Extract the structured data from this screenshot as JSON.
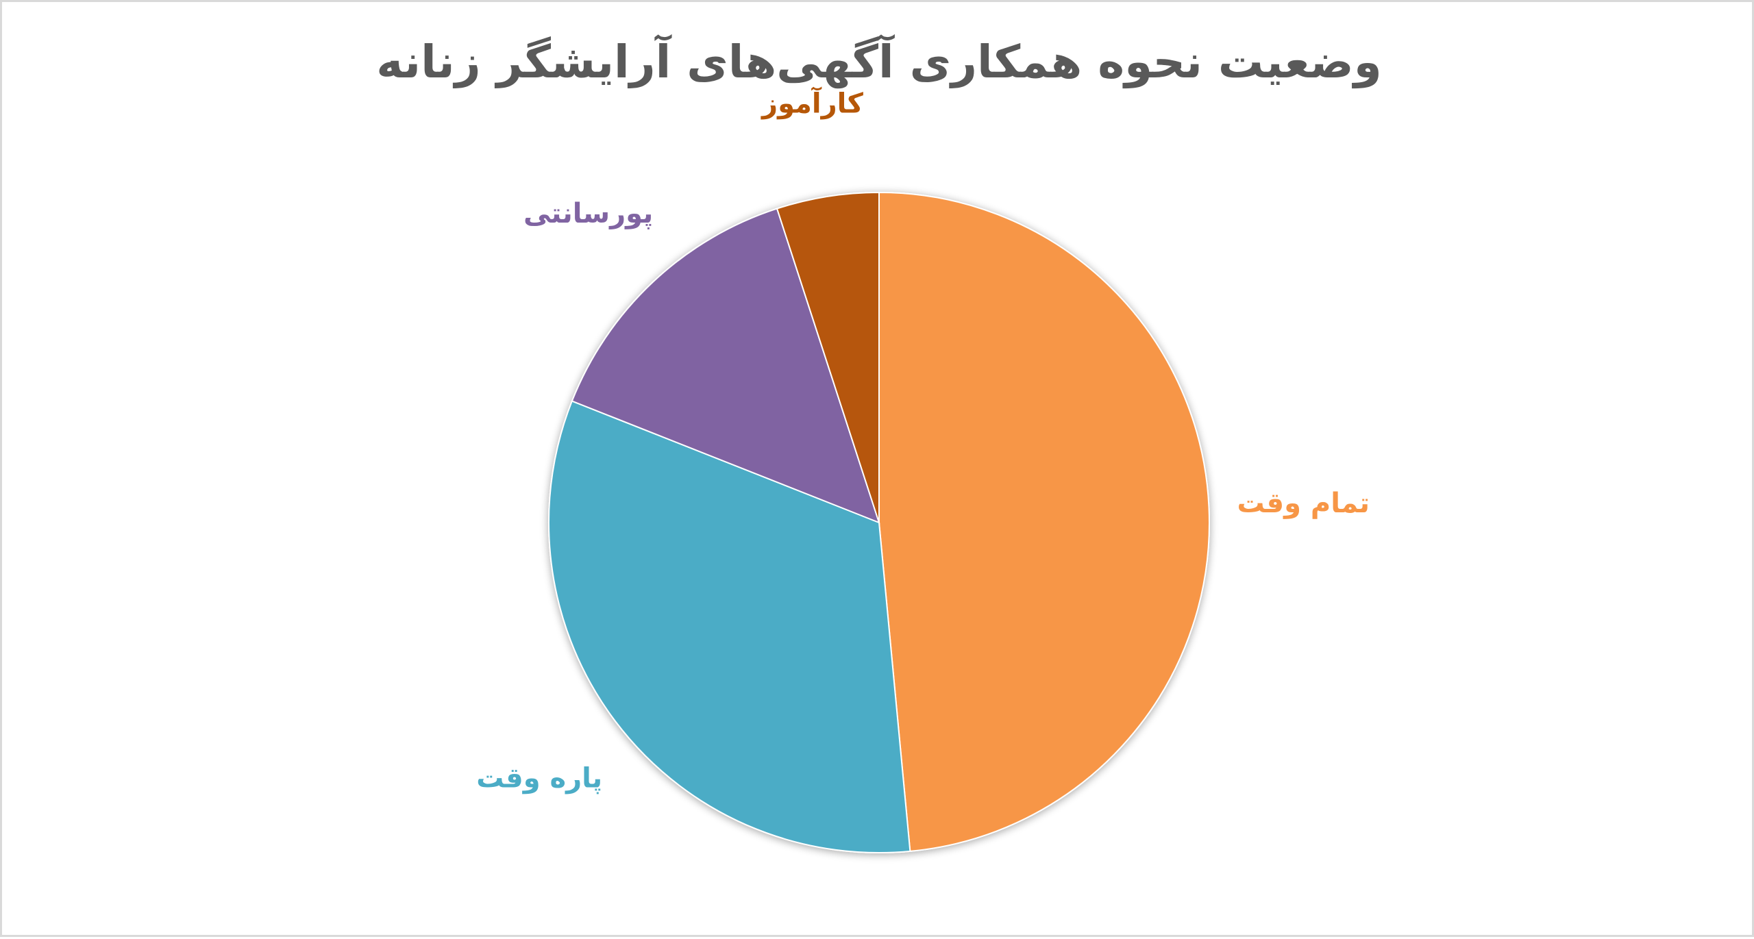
{
  "chart_data": {
    "type": "pie",
    "title": "وضعیت نحوه همکاری آگهی‌های آرایشگر زنانه",
    "start": "12 o'clock",
    "direction": "clockwise",
    "slices": [
      {
        "label": "تمام وقت",
        "value": 48.5,
        "color": "#F79646"
      },
      {
        "label": "پاره وقت",
        "value": 32.5,
        "color": "#4BACC6"
      },
      {
        "label": "پورسانتی",
        "value": 14,
        "color": "#8064A2"
      },
      {
        "label": "کارآموز",
        "value": 5,
        "color": "#B65708"
      }
    ],
    "labels_outside": true,
    "legend": "none"
  }
}
